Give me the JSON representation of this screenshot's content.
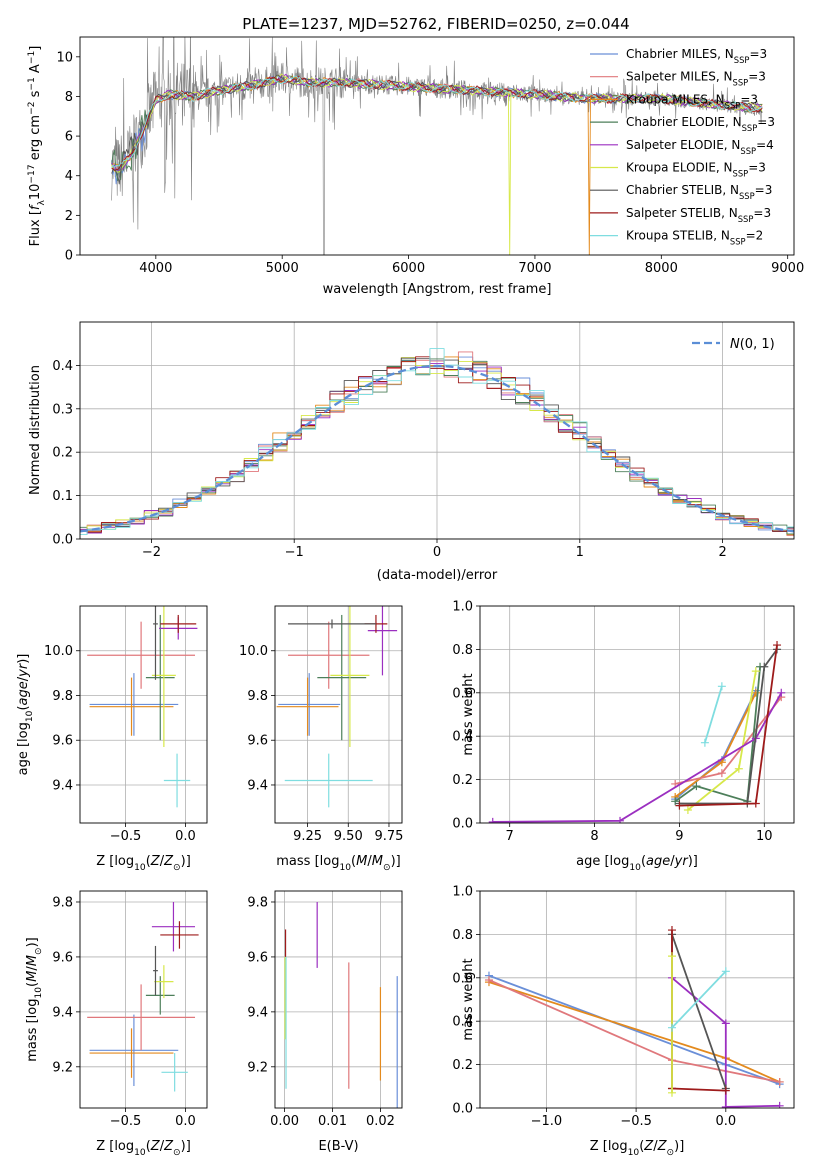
{
  "title": "PLATE=1237, MJD=52762, FIBERID=0250, z=0.044",
  "chart_data": [
    {
      "id": "spectrum",
      "type": "line",
      "xlabel": "wavelength [Angstrom, rest frame]",
      "ylabel": "Flux [f_λ 10^-17 erg cm^-2 s^-1 A^-1]",
      "xlim": [
        3400,
        9050
      ],
      "ylim": [
        0,
        11
      ],
      "xticks": [
        4000,
        5000,
        6000,
        7000,
        8000,
        9000
      ],
      "yticks": [
        0,
        2,
        4,
        6,
        8,
        10
      ],
      "grid": false,
      "legend_position": "top-right",
      "data_color": "#808080",
      "continuum": {
        "x": [
          3650,
          3700,
          3800,
          3900,
          4000,
          4100,
          4300,
          4500,
          4800,
          5000,
          5200,
          5500,
          6000,
          6500,
          7000,
          7400,
          8000,
          8400,
          8800
        ],
        "y": [
          4.5,
          4.3,
          5.0,
          6.3,
          7.8,
          8.1,
          8.0,
          8.3,
          8.6,
          8.9,
          8.7,
          8.7,
          8.5,
          8.3,
          8.1,
          7.9,
          7.9,
          7.6,
          7.4
        ]
      },
      "legend": [
        {
          "label": "Chabrier MILES, N",
          "sub": "SSP",
          "suffix": "=3",
          "color": "#6a8fd8"
        },
        {
          "label": "Salpeter MILES, N",
          "sub": "SSP",
          "suffix": "=3",
          "color": "#e0787c"
        },
        {
          "label": "Kroupa MILES, N",
          "sub": "SSP",
          "suffix": "=3",
          "color": "#e38a1e"
        },
        {
          "label": "Chabrier ELODIE, N",
          "sub": "SSP",
          "suffix": "=3",
          "color": "#4d7f5a"
        },
        {
          "label": "Salpeter ELODIE, N",
          "sub": "SSP",
          "suffix": "=4",
          "color": "#9b2fc0"
        },
        {
          "label": "Kroupa ELODIE, N",
          "sub": "SSP",
          "suffix": "=3",
          "color": "#d7e84a"
        },
        {
          "label": "Chabrier STELIB, N",
          "sub": "SSP",
          "suffix": "=3",
          "color": "#555555"
        },
        {
          "label": "Salpeter STELIB, N",
          "sub": "SSP",
          "suffix": "=3",
          "color": "#9e1b1b"
        },
        {
          "label": "Kroupa STELIB, N",
          "sub": "SSP",
          "suffix": "=2",
          "color": "#7fdde0"
        }
      ]
    },
    {
      "id": "residuals",
      "type": "line",
      "xlabel": "(data-model)/error",
      "ylabel": "Normed distribution",
      "xlim": [
        -2.5,
        2.5
      ],
      "ylim": [
        0,
        0.5
      ],
      "xticks": [
        -2,
        -1,
        0,
        1,
        2
      ],
      "yticks": [
        0.0,
        0.1,
        0.2,
        0.3,
        0.4
      ],
      "grid": true,
      "legend_position": "top-right",
      "legend_label": "N(0, 1)",
      "gauss_color": "#5b8ed6",
      "bin_width": 0.1
    },
    {
      "id": "age_vs_Z",
      "type": "scatter",
      "xlabel": "Z [log10(Z/Z⊙)]",
      "ylabel": "age  [log10(age/yr)]",
      "xlim": [
        -0.88,
        0.18
      ],
      "ylim": [
        9.23,
        10.2
      ],
      "xticks": [
        -0.5,
        0.0
      ],
      "yticks": [
        9.4,
        9.6,
        9.8,
        10.0
      ],
      "grid": true,
      "errorbars": [
        {
          "x": -0.43,
          "y": 9.76,
          "xerr": 0.37,
          "yerr": 0.14,
          "color": "#6a8fd8"
        },
        {
          "x": -0.45,
          "y": 9.75,
          "xerr": 0.35,
          "yerr": 0.13,
          "color": "#e38a1e"
        },
        {
          "x": -0.37,
          "y": 9.98,
          "xerr": 0.45,
          "yerr": 0.15,
          "color": "#e0787c"
        },
        {
          "x": -0.21,
          "y": 9.88,
          "xerr": 0.12,
          "yerr": 0.28,
          "color": "#4d7f5a"
        },
        {
          "x": -0.18,
          "y": 9.89,
          "xerr": 0.1,
          "yerr": 0.32,
          "color": "#d7e84a"
        },
        {
          "x": -0.06,
          "y": 10.1,
          "xerr": 0.16,
          "yerr": 0.05,
          "color": "#9b2fc0"
        },
        {
          "x": -0.06,
          "y": 10.12,
          "xerr": 0.15,
          "yerr": 0.04,
          "color": "#9e1b1b"
        },
        {
          "x": -0.25,
          "y": 10.12,
          "xerr": 0.02,
          "yerr": 0.25,
          "color": "#555555"
        },
        {
          "x": -0.07,
          "y": 9.42,
          "xerr": 0.11,
          "yerr": 0.12,
          "color": "#7fdde0"
        }
      ]
    },
    {
      "id": "age_vs_mass",
      "type": "scatter",
      "xlabel": "mass [log10(M/M⊙)]",
      "ylabel": "",
      "xlim": [
        9.05,
        9.83
      ],
      "ylim": [
        9.23,
        10.2
      ],
      "xticks": [
        9.25,
        9.5,
        9.75
      ],
      "yticks": [
        9.4,
        9.6,
        9.8,
        10.0
      ],
      "grid": true,
      "errorbars": [
        {
          "x": 9.26,
          "y": 9.76,
          "xerr": 0.19,
          "yerr": 0.14,
          "color": "#6a8fd8"
        },
        {
          "x": 9.25,
          "y": 9.75,
          "xerr": 0.19,
          "yerr": 0.13,
          "color": "#e38a1e"
        },
        {
          "x": 9.38,
          "y": 9.98,
          "xerr": 0.25,
          "yerr": 0.15,
          "color": "#e0787c"
        },
        {
          "x": 9.46,
          "y": 9.88,
          "xerr": 0.15,
          "yerr": 0.28,
          "color": "#4d7f5a"
        },
        {
          "x": 9.51,
          "y": 9.89,
          "xerr": 0.12,
          "yerr": 0.32,
          "color": "#d7e84a"
        },
        {
          "x": 9.71,
          "y": 10.09,
          "xerr": 0.09,
          "yerr": 0.2,
          "color": "#9b2fc0"
        },
        {
          "x": 9.67,
          "y": 10.12,
          "xerr": 0.07,
          "yerr": 0.04,
          "color": "#9e1b1b"
        },
        {
          "x": 9.4,
          "y": 10.12,
          "xerr": 0.27,
          "yerr": 0.02,
          "color": "#555555"
        },
        {
          "x": 9.38,
          "y": 9.42,
          "xerr": 0.27,
          "yerr": 0.12,
          "color": "#7fdde0"
        }
      ]
    },
    {
      "id": "weight_vs_age",
      "type": "line",
      "xlabel": "age  [log10(age/yr)]",
      "ylabel": "mass weight",
      "xlim": [
        6.65,
        10.35
      ],
      "ylim": [
        0.0,
        1.0
      ],
      "xticks": [
        7,
        8,
        9,
        10
      ],
      "yticks": [
        0.0,
        0.2,
        0.4,
        0.6,
        0.8,
        1.0
      ],
      "grid": true,
      "series": [
        {
          "color": "#6a8fd8",
          "x": [
            8.95,
            9.5,
            9.9
          ],
          "y": [
            0.11,
            0.29,
            0.61
          ]
        },
        {
          "color": "#e38a1e",
          "x": [
            8.95,
            9.5,
            9.9
          ],
          "y": [
            0.12,
            0.28,
            0.6
          ]
        },
        {
          "color": "#e0787c",
          "x": [
            8.95,
            9.5,
            10.2
          ],
          "y": [
            0.18,
            0.23,
            0.58
          ]
        },
        {
          "color": "#4d7f5a",
          "x": [
            8.95,
            9.2,
            9.8,
            9.95
          ],
          "y": [
            0.1,
            0.17,
            0.1,
            0.72
          ]
        },
        {
          "color": "#d7e84a",
          "x": [
            9.1,
            9.7,
            9.9
          ],
          "y": [
            0.06,
            0.25,
            0.7
          ]
        },
        {
          "color": "#9b2fc0",
          "x": [
            6.8,
            8.3,
            9.9,
            10.2
          ],
          "y": [
            0.005,
            0.01,
            0.39,
            0.6
          ]
        },
        {
          "color": "#555555",
          "x": [
            9.0,
            9.8,
            10.0,
            10.15
          ],
          "y": [
            0.09,
            0.09,
            0.72,
            0.8
          ]
        },
        {
          "color": "#9e1b1b",
          "x": [
            9.0,
            9.9,
            10.15
          ],
          "y": [
            0.08,
            0.09,
            0.82
          ]
        },
        {
          "color": "#7fdde0",
          "x": [
            9.3,
            9.5
          ],
          "y": [
            0.37,
            0.63
          ]
        }
      ]
    },
    {
      "id": "mass_vs_Z",
      "type": "scatter",
      "xlabel": "Z [log10(Z/Z⊙)]",
      "ylabel": "mass [log10(M/M⊙)]",
      "xlim": [
        -0.88,
        0.18
      ],
      "ylim": [
        9.05,
        9.84
      ],
      "xticks": [
        -0.5,
        0.0
      ],
      "yticks": [
        9.2,
        9.4,
        9.6,
        9.8
      ],
      "grid": true,
      "errorbars": [
        {
          "x": -0.43,
          "y": 9.26,
          "xerr": 0.37,
          "yerr": 0.13,
          "color": "#6a8fd8"
        },
        {
          "x": -0.45,
          "y": 9.25,
          "xerr": 0.35,
          "yerr": 0.09,
          "color": "#e38a1e"
        },
        {
          "x": -0.37,
          "y": 9.38,
          "xerr": 0.45,
          "yerr": 0.12,
          "color": "#e0787c"
        },
        {
          "x": -0.21,
          "y": 9.46,
          "xerr": 0.12,
          "yerr": 0.07,
          "color": "#4d7f5a"
        },
        {
          "x": -0.18,
          "y": 9.51,
          "xerr": 0.08,
          "yerr": 0.06,
          "color": "#d7e84a"
        },
        {
          "x": -0.1,
          "y": 9.71,
          "xerr": 0.18,
          "yerr": 0.09,
          "color": "#9b2fc0"
        },
        {
          "x": -0.05,
          "y": 9.68,
          "xerr": 0.16,
          "yerr": 0.05,
          "color": "#9e1b1b"
        },
        {
          "x": -0.25,
          "y": 9.55,
          "xerr": 0.02,
          "yerr": 0.09,
          "color": "#555555"
        },
        {
          "x": -0.09,
          "y": 9.18,
          "xerr": 0.11,
          "yerr": 0.07,
          "color": "#7fdde0"
        }
      ]
    },
    {
      "id": "mass_vs_ebv",
      "type": "scatter",
      "xlabel": "E(B-V)",
      "ylabel": "",
      "xlim": [
        -0.002,
        0.0245
      ],
      "ylim": [
        9.05,
        9.84
      ],
      "xticks": [
        0.0,
        0.01,
        0.02
      ],
      "xtick_labels": [
        "0.00",
        "0.01",
        "0.02"
      ],
      "yticks": [
        9.2,
        9.4,
        9.6,
        9.8
      ],
      "grid": true,
      "errorbars": [
        {
          "x": 0.0235,
          "y": 9.29,
          "xerr": 0,
          "yerr": 0.24,
          "color": "#6a8fd8"
        },
        {
          "x": 0.02,
          "y": 9.32,
          "xerr": 0,
          "yerr": 0.17,
          "color": "#e38a1e"
        },
        {
          "x": 0.0134,
          "y": 9.35,
          "xerr": 0,
          "yerr": 0.23,
          "color": "#e0787c"
        },
        {
          "x": 0.0068,
          "y": 9.68,
          "xerr": 0,
          "yerr": 0.12,
          "color": "#9b2fc0"
        },
        {
          "x": 0.0002,
          "y": 9.61,
          "xerr": 0,
          "yerr": 0.09,
          "color": "#9e1b1b"
        },
        {
          "x": 0.0001,
          "y": 9.45,
          "xerr": 0,
          "yerr": 0.15,
          "color": "#d7e84a"
        },
        {
          "x": 0.0003,
          "y": 9.36,
          "xerr": 0,
          "yerr": 0.24,
          "color": "#7fdde0"
        }
      ]
    },
    {
      "id": "weight_vs_Z",
      "type": "line",
      "xlabel": "Z [log10(Z/Z⊙)]",
      "ylabel": "mass weight",
      "xlim": [
        -1.37,
        0.38
      ],
      "ylim": [
        0.0,
        1.0
      ],
      "xticks": [
        -1.0,
        -0.5,
        0.0
      ],
      "yticks": [
        0.0,
        0.2,
        0.4,
        0.6,
        0.8,
        1.0
      ],
      "grid": true,
      "series": [
        {
          "color": "#6a8fd8",
          "x": [
            -1.32,
            0.0,
            0.3
          ],
          "y": [
            0.61,
            0.2,
            0.11
          ]
        },
        {
          "color": "#e38a1e",
          "x": [
            -1.32,
            0.0,
            0.3
          ],
          "y": [
            0.58,
            0.23,
            0.12
          ]
        },
        {
          "color": "#e0787c",
          "x": [
            -1.32,
            -0.3,
            0.3
          ],
          "y": [
            0.59,
            0.22,
            0.12
          ]
        },
        {
          "color": "#9b2fc0",
          "x": [
            -0.3,
            0.0,
            0.0,
            0.3
          ],
          "y": [
            0.6,
            0.39,
            0.005,
            0.01
          ]
        },
        {
          "color": "#555555",
          "x": [
            -0.3,
            -0.3,
            0.0
          ],
          "y": [
            0.09,
            0.8,
            0.09
          ]
        },
        {
          "color": "#9e1b1b",
          "x": [
            -0.3,
            -0.3,
            0.0
          ],
          "y": [
            0.82,
            0.09,
            0.08
          ]
        },
        {
          "color": "#d7e84a",
          "x": [
            -0.3,
            -0.3
          ],
          "y": [
            0.07,
            0.7
          ]
        },
        {
          "color": "#7fdde0",
          "x": [
            -0.3,
            0.0
          ],
          "y": [
            0.37,
            0.63
          ]
        }
      ]
    }
  ]
}
